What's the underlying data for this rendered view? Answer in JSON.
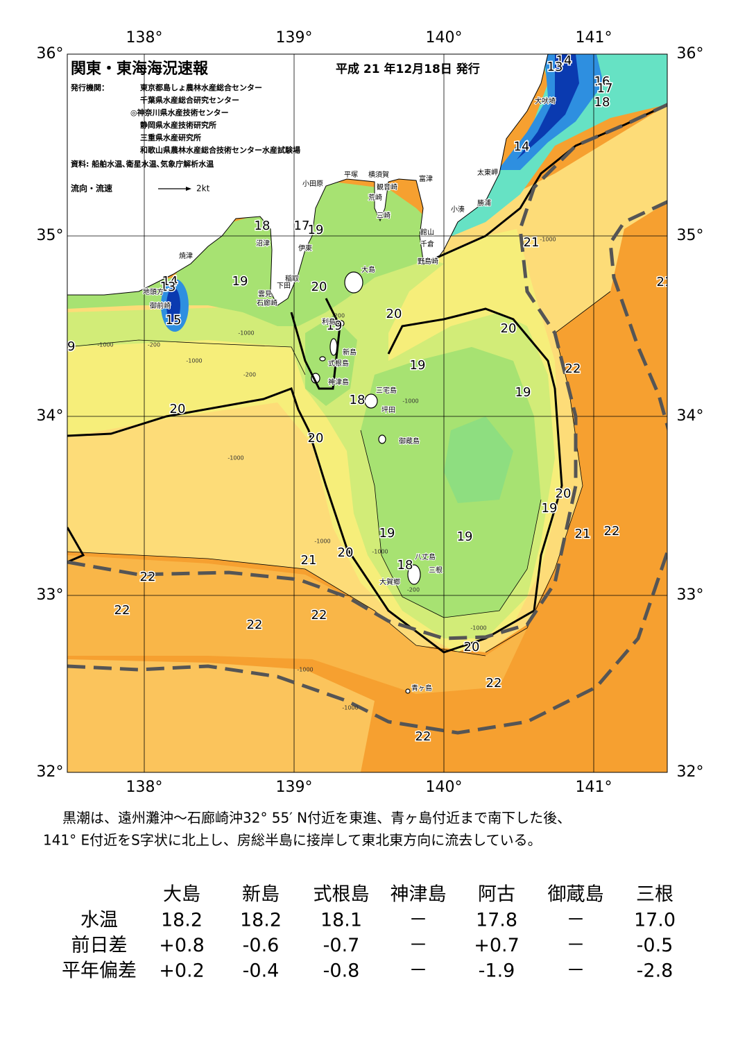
{
  "header": {
    "title": "関東・東海海況速報",
    "date": "平成 21 年12月18日 発行"
  },
  "publishers": {
    "label": "発行機関：",
    "names": [
      "東京都島しょ農林水産総合センター",
      "千葉県水産総合研究センター",
      "◎神奈川県水産技術センター",
      "静岡県水産技術研究所",
      "三重県水産研究所",
      "和歌山県農林水産総合技術センター水産試験場"
    ]
  },
  "source": "資料: 船舶水温､衛星水温､気象庁解析水温",
  "legend": {
    "label": "流向・流速",
    "speed": "2kt"
  },
  "axes": {
    "lon_top": [
      "138°",
      "139°",
      "140°",
      "141°"
    ],
    "lon_bottom": [
      "138°",
      "139°",
      "140°",
      "141°"
    ],
    "lat_left": [
      "36°",
      "35°",
      "34°",
      "33°",
      "32°"
    ],
    "lat_right": [
      "36°",
      "35°",
      "34°",
      "33°",
      "32°"
    ]
  },
  "temperature_labels": [
    14,
    13,
    16,
    17,
    18,
    14,
    21,
    21,
    18,
    17,
    19,
    19,
    14,
    13,
    15,
    20,
    20,
    20,
    19,
    19,
    19,
    22,
    19,
    18,
    20,
    20,
    20,
    19,
    21,
    22,
    19,
    19,
    20,
    21,
    18,
    22,
    22,
    22,
    22,
    20,
    22,
    22
  ],
  "depth_labels": [
    -1000,
    -200,
    -1000,
    -1000,
    -200,
    -1000,
    -200,
    -1000,
    -1000,
    -1000,
    -200,
    -1000,
    -1000,
    -1000,
    -1000
  ],
  "places": [
    "小田原",
    "平塚",
    "横須賀",
    "富津",
    "観音崎",
    "荒崎",
    "三崎",
    "太東岬",
    "勝浦",
    "小湊",
    "犬吠埼",
    "館山",
    "千倉",
    "野島崎",
    "沼津",
    "伊東",
    "焼津",
    "稲取",
    "下田",
    "雲見",
    "石廊崎",
    "地頭方",
    "御前崎",
    "大島",
    "利島",
    "新島",
    "式根島",
    "神津島",
    "三宅島",
    "坪田",
    "御蔵島",
    "八丈島",
    "三根",
    "大賀郷",
    "青ヶ島"
  ],
  "summary": [
    "黒潮は、遠州灘沖～石廊崎沖32° 55′ N付近を東進、青ヶ島付近まで南下した後、",
    "141° E付近をS字状に北上し、房総半島に接岸して東北東方向に流去している。"
  ],
  "table": {
    "columns": [
      "大島",
      "新島",
      "式根島",
      "神津島",
      "阿古",
      "御蔵島",
      "三根"
    ],
    "rows": [
      {
        "label": "水温",
        "values": [
          "18.2",
          "18.2",
          "18.1",
          "－",
          "17.8",
          "－",
          "17.0"
        ]
      },
      {
        "label": "前日差",
        "values": [
          "+0.8",
          "-0.6",
          "-0.7",
          "－",
          "+0.7",
          "－",
          "-0.5"
        ]
      },
      {
        "label": "平年偏差",
        "values": [
          "+0.2",
          "-0.4",
          "-0.8",
          "－",
          "-1.9",
          "－",
          "-2.8"
        ]
      }
    ]
  }
}
